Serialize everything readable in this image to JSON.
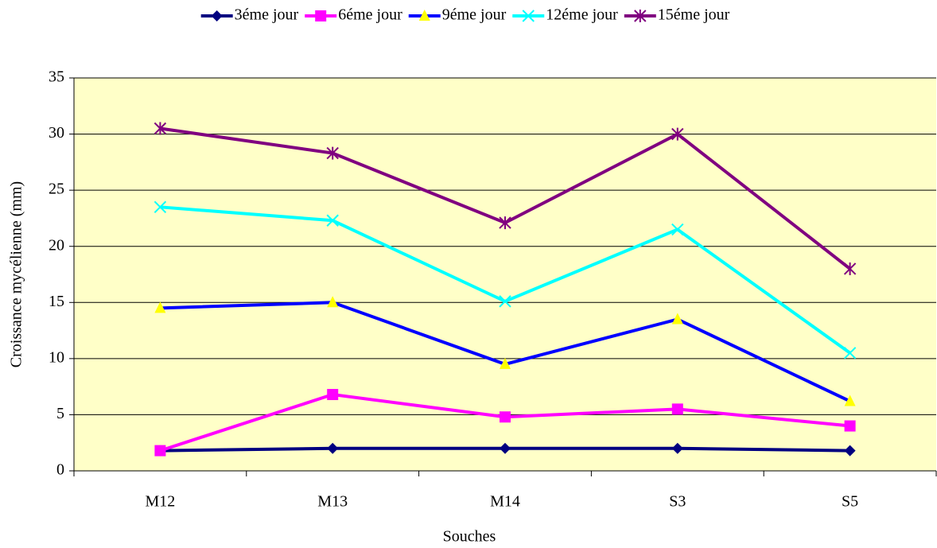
{
  "chart_data": {
    "type": "line",
    "x_label": "Souches",
    "y_label": "Croissance mycélienne (mm)",
    "categories": [
      "M12",
      "M13",
      "M14",
      "S3",
      "S5"
    ],
    "series": [
      {
        "name": "3éme jour",
        "color": "#000080",
        "marker": "diamond",
        "marker_color": "#000080",
        "values": [
          1.8,
          2,
          2,
          2,
          1.8
        ]
      },
      {
        "name": "6éme jour",
        "color": "#ff00ff",
        "marker": "square",
        "marker_color": "#ff00ff",
        "values": [
          1.8,
          6.8,
          4.8,
          5.5,
          4
        ]
      },
      {
        "name": "9éme jour",
        "color": "#0000ff",
        "marker": "triangle",
        "marker_color": "#ffff00",
        "values": [
          14.5,
          15,
          9.5,
          13.5,
          6.2
        ]
      },
      {
        "name": "12éme jour",
        "color": "#00ffff",
        "marker": "x",
        "marker_color": "#00ffff",
        "values": [
          23.5,
          22.3,
          15.1,
          21.5,
          10.5
        ]
      },
      {
        "name": "15éme jour",
        "color": "#800080",
        "marker": "star",
        "marker_color": "#800080",
        "values": [
          30.5,
          28.3,
          22.1,
          30,
          18
        ]
      }
    ],
    "ylim": [
      0,
      35
    ],
    "yticks": [
      0,
      5,
      10,
      15,
      20,
      25,
      30,
      35
    ],
    "grid": true,
    "legend": "top",
    "plot_background": "#ffffc8"
  }
}
